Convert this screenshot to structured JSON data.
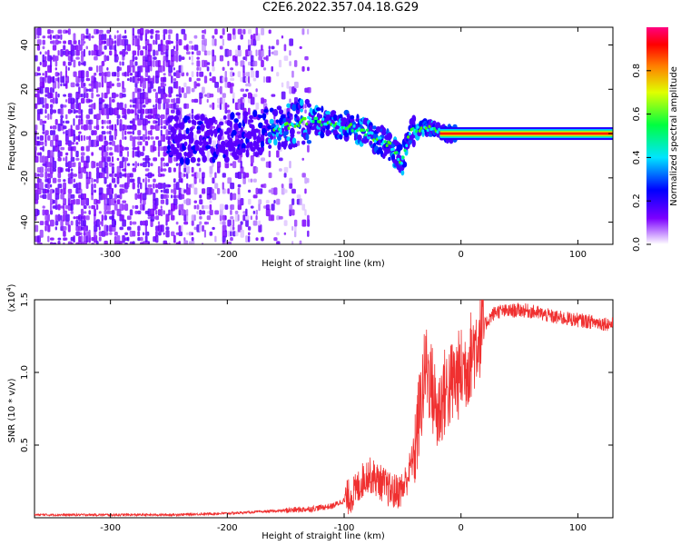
{
  "title": "C2E6.2022.357.04.18.G29",
  "chart_data": [
    {
      "type": "heatmap",
      "xlabel": "Height of straight line (km)",
      "ylabel": "Frequency (Hz)",
      "xlim": [
        -365,
        130
      ],
      "ylim": [
        -50,
        48
      ],
      "xticks": [
        -300,
        -200,
        -100,
        0,
        100
      ],
      "yticks": [
        -40,
        -20,
        0,
        20,
        40
      ],
      "colorbar": {
        "label": "Normalized spectral amplitude",
        "range": [
          0.0,
          1.0
        ],
        "ticks": [
          0.0,
          0.2,
          0.4,
          0.6,
          0.8
        ],
        "tick_labels": [
          "0.0",
          "0.2",
          "0.4",
          "0.6",
          "0.8"
        ],
        "colors": [
          "#ffffff",
          "#7c00ff",
          "#0000ff",
          "#00e5ff",
          "#00ff40",
          "#e0ff00",
          "#ff8000",
          "#ff0000",
          "#ff0080"
        ]
      },
      "ridge": [
        {
          "x": -240,
          "y": -3
        },
        {
          "x": -200,
          "y": -2
        },
        {
          "x": -160,
          "y": 2
        },
        {
          "x": -130,
          "y": 6
        },
        {
          "x": -100,
          "y": 4
        },
        {
          "x": -80,
          "y": 0
        },
        {
          "x": -60,
          "y": -6
        },
        {
          "x": -50,
          "y": -13
        },
        {
          "x": -45,
          "y": 0
        },
        {
          "x": -30,
          "y": 3
        },
        {
          "x": -15,
          "y": 0
        },
        {
          "x": 0,
          "y": 0
        },
        {
          "x": 130,
          "y": 0
        }
      ]
    },
    {
      "type": "line",
      "xlabel": "Height of straight line (km)",
      "ylabel": "SNR (10 * v/v)",
      "scale_note": "(x10",
      "scale_exp": "4",
      "scale_close": ")",
      "xlim": [
        -365,
        130
      ],
      "ylim": [
        0,
        1.5
      ],
      "xticks": [
        -300,
        -200,
        -100,
        0,
        100
      ],
      "yticks": [
        0.5,
        1.0,
        1.5
      ],
      "ytick_labels": [
        "0.5",
        "1.0",
        "1.5"
      ],
      "color": "#f03030",
      "series": [
        {
          "x": [
            -365,
            -300,
            -250,
            -200,
            -150,
            -130,
            -110,
            -100,
            -90,
            -85,
            -80,
            -75,
            -70,
            -65,
            -60,
            -55,
            -50,
            -45,
            -40,
            -35,
            -30,
            -25,
            -20,
            -15,
            -10,
            -5,
            0,
            5,
            10,
            15,
            20,
            25,
            30,
            40,
            50,
            60,
            70,
            80,
            90,
            100,
            110,
            120,
            130
          ],
          "values": [
            0.02,
            0.02,
            0.02,
            0.03,
            0.05,
            0.06,
            0.08,
            0.12,
            0.18,
            0.25,
            0.3,
            0.28,
            0.25,
            0.22,
            0.18,
            0.18,
            0.2,
            0.3,
            0.45,
            0.75,
            1.05,
            0.9,
            0.7,
            0.85,
            0.9,
            0.95,
            1.0,
            1.05,
            1.15,
            1.25,
            1.32,
            1.38,
            1.42,
            1.42,
            1.43,
            1.42,
            1.4,
            1.38,
            1.37,
            1.36,
            1.35,
            1.34,
            1.33
          ]
        }
      ]
    }
  ]
}
